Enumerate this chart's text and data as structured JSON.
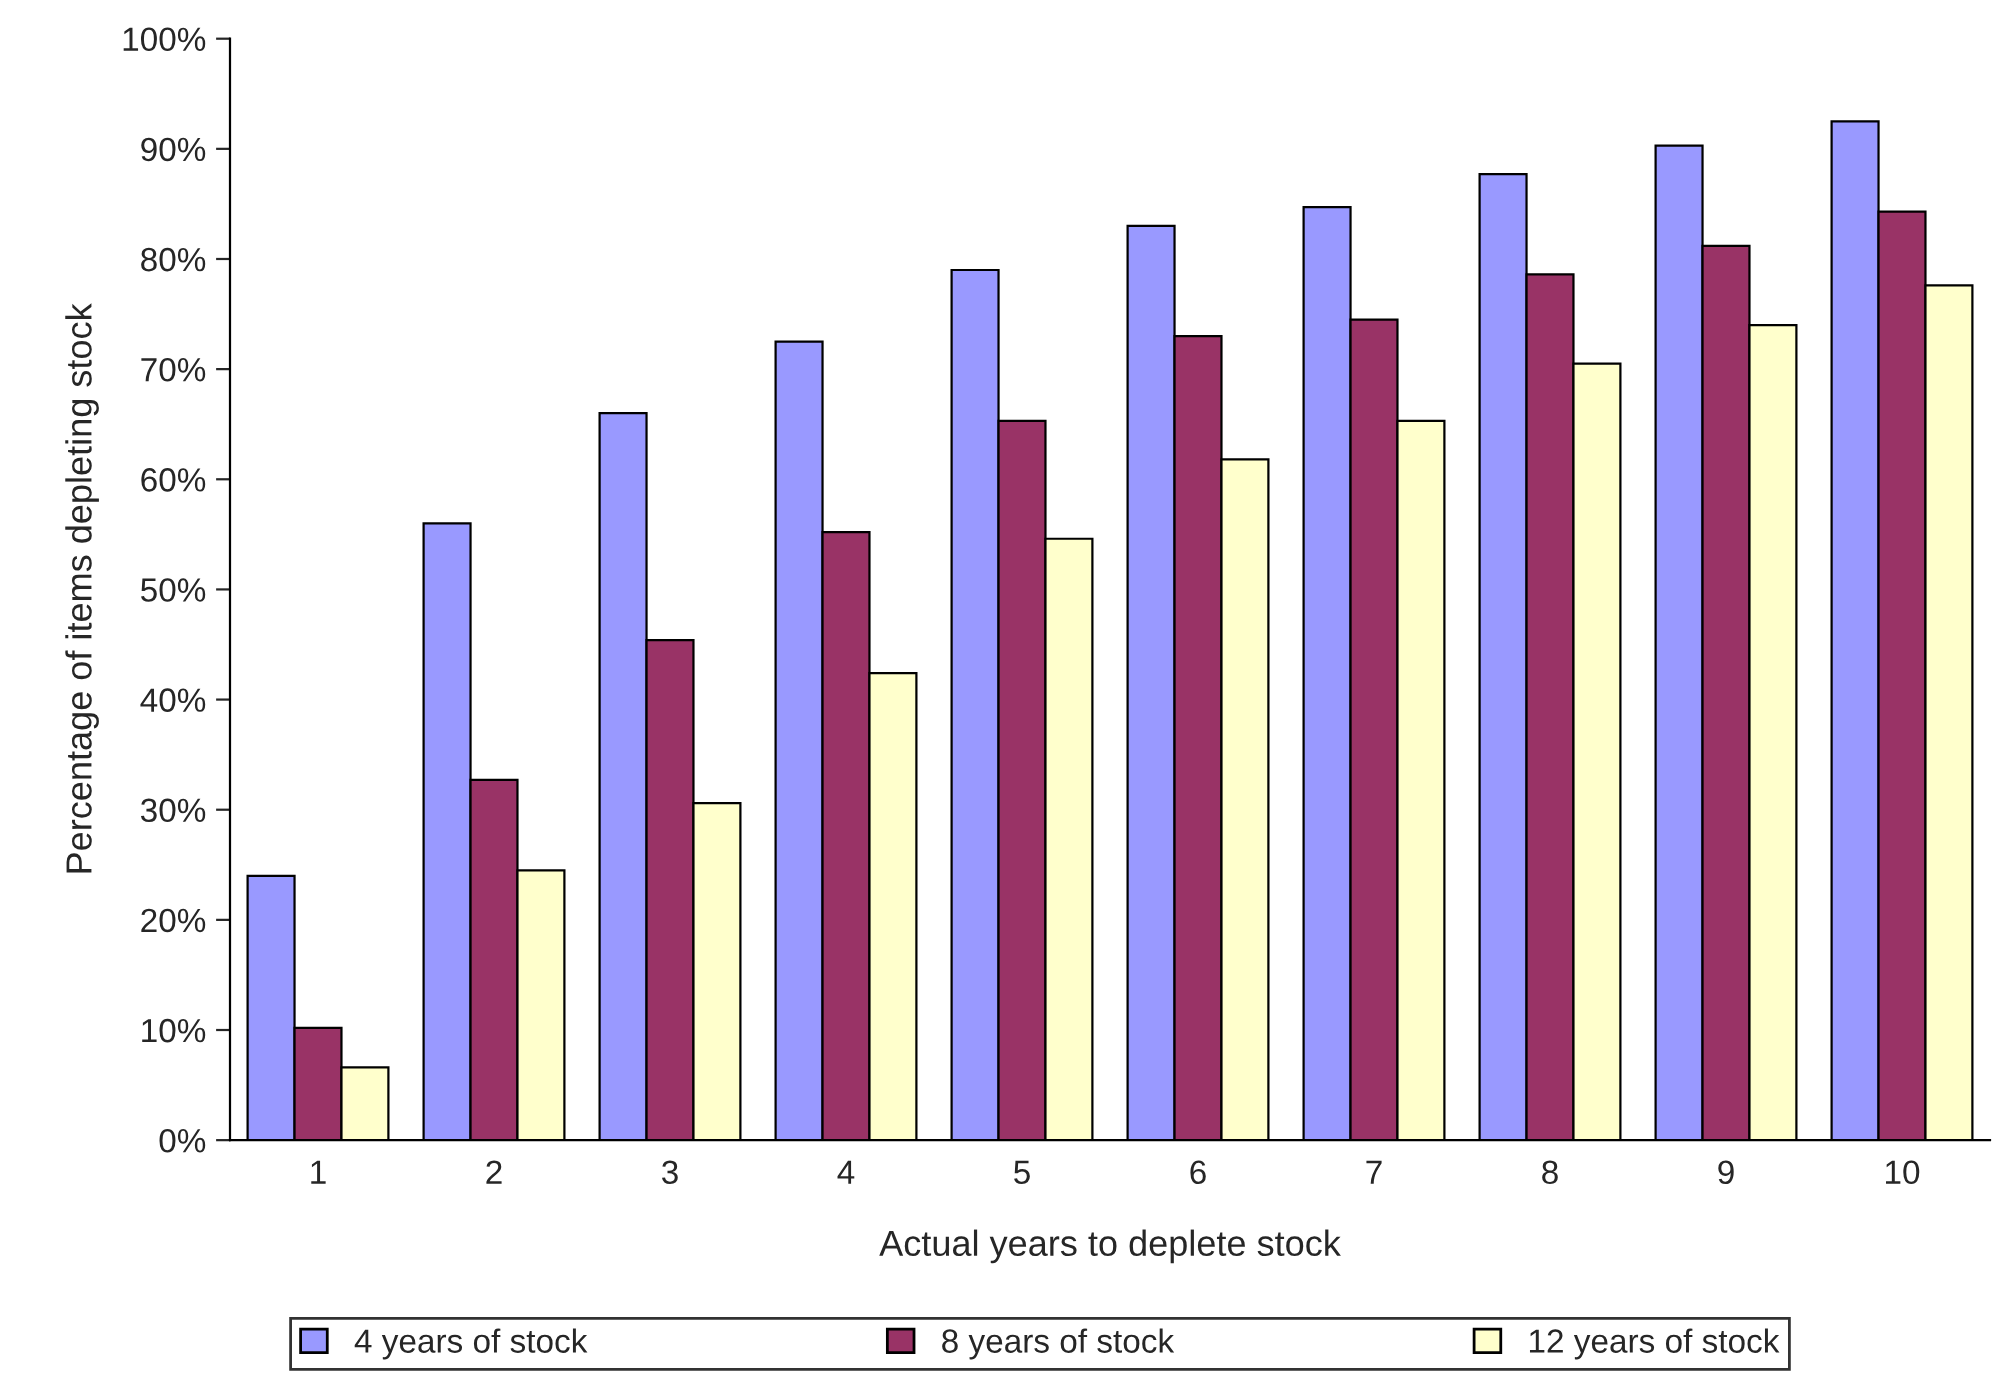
{
  "chart_data": {
    "type": "bar",
    "xlabel": "Actual years to deplete stock",
    "ylabel": "Percentage of items depleting stock",
    "categories": [
      "1",
      "2",
      "3",
      "4",
      "5",
      "6",
      "7",
      "8",
      "9",
      "10"
    ],
    "series": [
      {
        "name": "4 years of stock",
        "color": "#9999ff",
        "values": [
          24,
          56,
          66,
          72.5,
          79,
          83,
          84.7,
          87.7,
          90.3,
          92.5
        ]
      },
      {
        "name": "8 years of stock",
        "color": "#993366",
        "values": [
          10.2,
          32.7,
          45.4,
          55.2,
          65.3,
          73,
          74.5,
          78.6,
          81.2,
          84.3
        ]
      },
      {
        "name": "12 years of stock",
        "color": "#ffffcc",
        "values": [
          6.6,
          24.5,
          30.6,
          42.4,
          54.6,
          61.8,
          65.3,
          70.5,
          74,
          77.6
        ]
      }
    ],
    "ylim": [
      0,
      100
    ],
    "yticks": [
      {
        "value": 0,
        "label": "0%"
      },
      {
        "value": 10,
        "label": "10%"
      },
      {
        "value": 20,
        "label": "20%"
      },
      {
        "value": 30,
        "label": "30%"
      },
      {
        "value": 40,
        "label": "40%"
      },
      {
        "value": 50,
        "label": "50%"
      },
      {
        "value": 60,
        "label": "60%"
      },
      {
        "value": 70,
        "label": "70%"
      },
      {
        "value": 80,
        "label": "80%"
      },
      {
        "value": 90,
        "label": "90%"
      },
      {
        "value": 100,
        "label": "100%"
      }
    ],
    "grid": false,
    "legend": "bottom"
  }
}
